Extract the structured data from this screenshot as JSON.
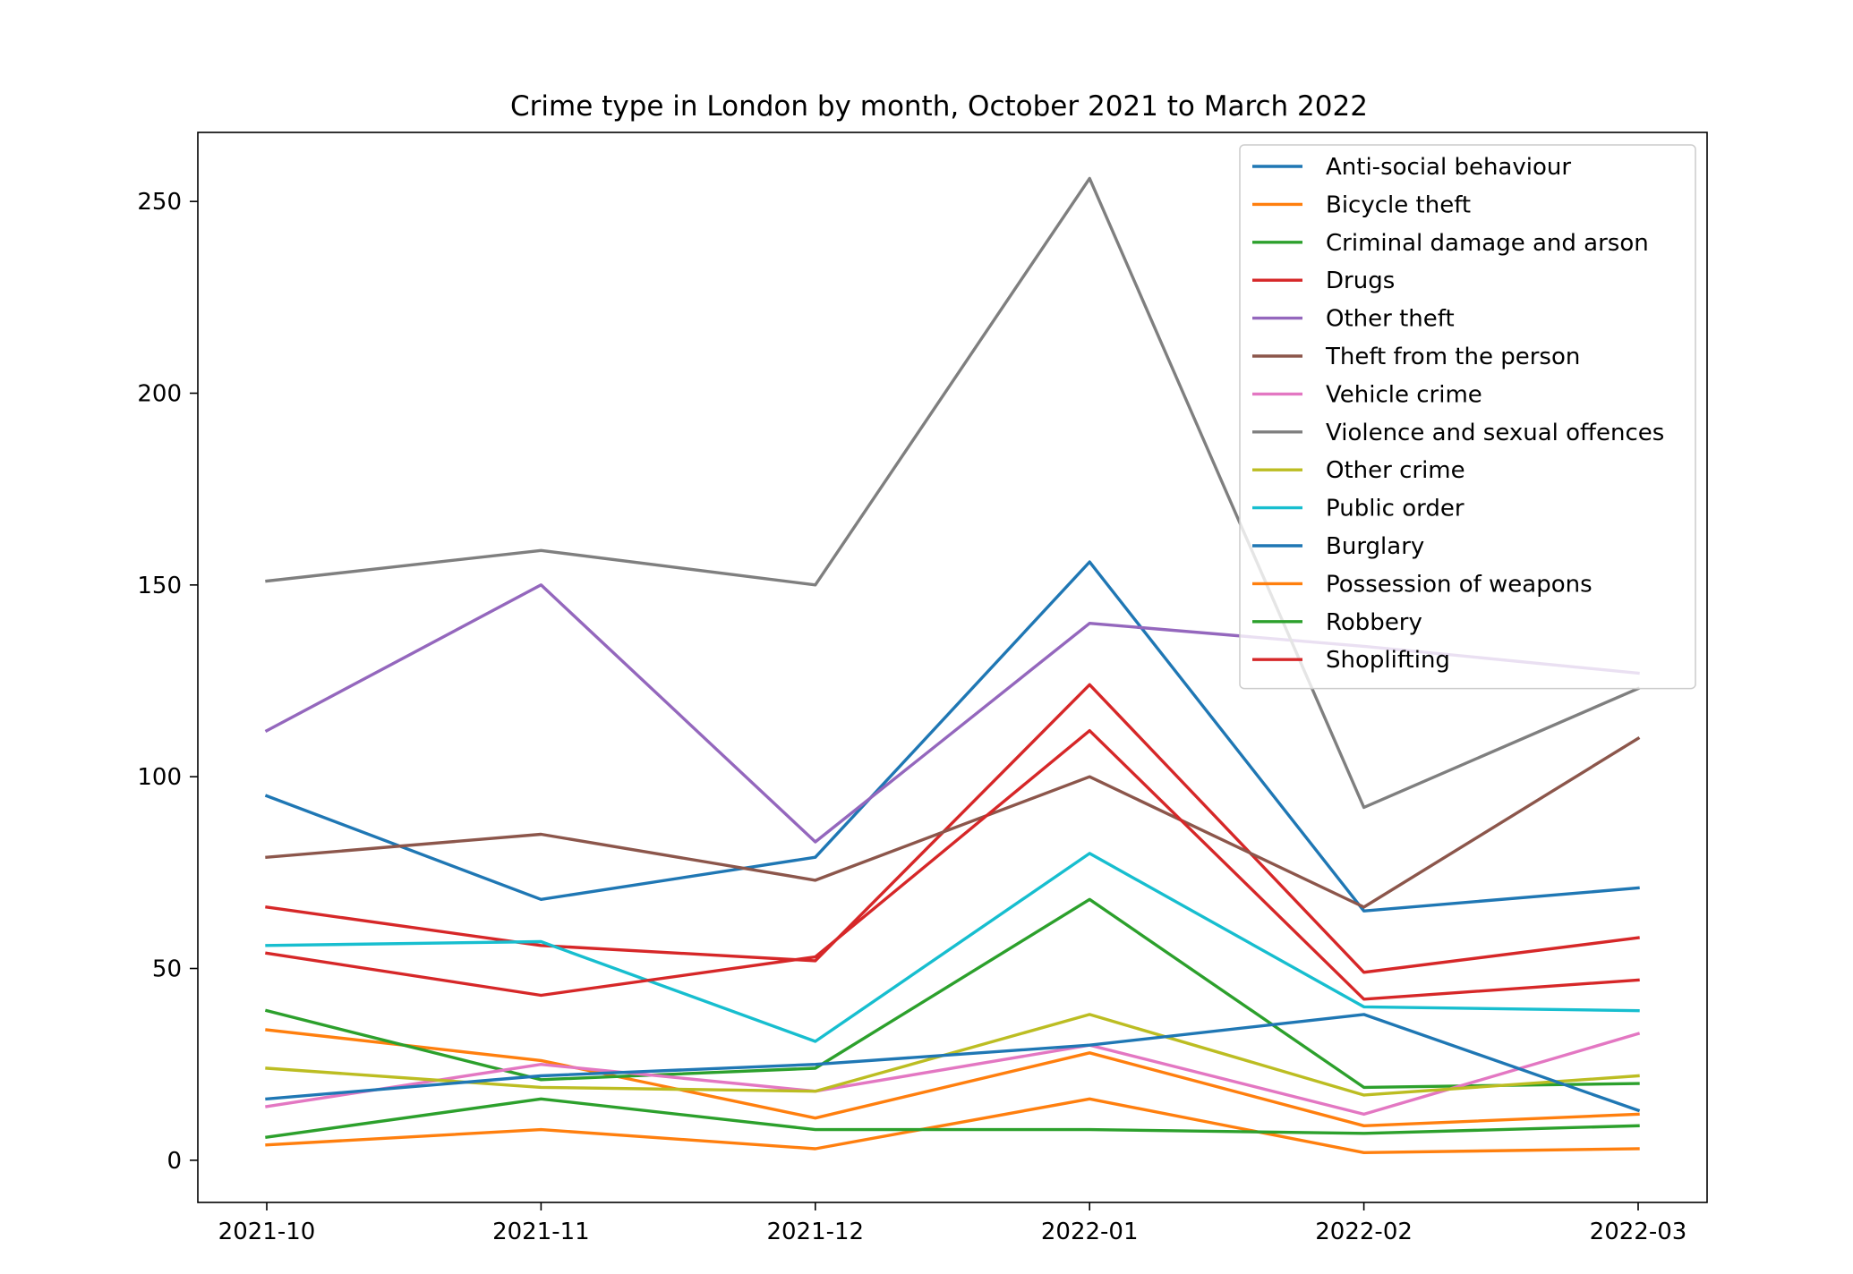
{
  "chart_data": {
    "type": "line",
    "title": "Crime type in London by month, October 2021 to March 2022",
    "xlabel": "",
    "ylabel": "",
    "categories": [
      "2021-10",
      "2021-11",
      "2021-12",
      "2022-01",
      "2022-02",
      "2022-03"
    ],
    "ylim": [
      -11,
      268
    ],
    "yticks": [
      0,
      50,
      100,
      150,
      200,
      250
    ],
    "grid": false,
    "legend_position": "upper right",
    "series": [
      {
        "name": "Anti-social behaviour",
        "color": "#1f77b4",
        "values": [
          95,
          68,
          79,
          156,
          65,
          71
        ]
      },
      {
        "name": "Bicycle theft",
        "color": "#ff7f0e",
        "values": [
          34,
          26,
          11,
          28,
          9,
          12
        ]
      },
      {
        "name": "Criminal damage and arson",
        "color": "#2ca02c",
        "values": [
          39,
          21,
          24,
          68,
          19,
          20
        ]
      },
      {
        "name": "Drugs",
        "color": "#d62728",
        "values": [
          66,
          56,
          52,
          124,
          49,
          58
        ]
      },
      {
        "name": "Other theft",
        "color": "#9467bd",
        "values": [
          112,
          150,
          83,
          140,
          134,
          127
        ]
      },
      {
        "name": "Theft from the person",
        "color": "#8c564b",
        "values": [
          79,
          85,
          73,
          100,
          66,
          110
        ]
      },
      {
        "name": "Vehicle crime",
        "color": "#e377c2",
        "values": [
          14,
          25,
          18,
          30,
          12,
          33
        ]
      },
      {
        "name": "Violence and sexual offences",
        "color": "#7f7f7f",
        "values": [
          151,
          159,
          150,
          256,
          92,
          123
        ]
      },
      {
        "name": "Other crime",
        "color": "#bcbd22",
        "values": [
          24,
          19,
          18,
          38,
          17,
          22
        ]
      },
      {
        "name": "Public order",
        "color": "#17becf",
        "values": [
          56,
          57,
          31,
          80,
          40,
          39
        ]
      },
      {
        "name": "Burglary",
        "color": "#1f77b4",
        "values": [
          16,
          22,
          25,
          30,
          38,
          13
        ]
      },
      {
        "name": "Possession of weapons",
        "color": "#ff7f0e",
        "values": [
          4,
          8,
          3,
          16,
          2,
          3
        ]
      },
      {
        "name": "Robbery",
        "color": "#2ca02c",
        "values": [
          6,
          16,
          8,
          8,
          7,
          9
        ]
      },
      {
        "name": "Shoplifting",
        "color": "#d62728",
        "values": [
          54,
          43,
          53,
          112,
          42,
          47
        ]
      }
    ]
  }
}
